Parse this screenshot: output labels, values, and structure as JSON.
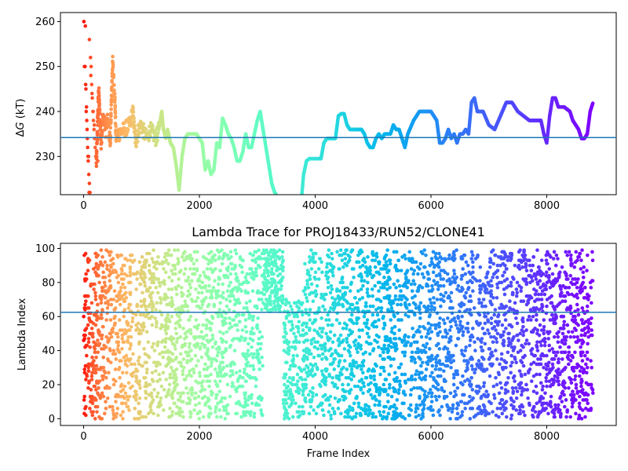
{
  "chart_data": [
    {
      "type": "scatter",
      "title": "",
      "xlabel": "",
      "ylabel": "ΔG (kT)",
      "ylabel_parts": {
        "delta": "Δ",
        "var": "G",
        "unit": " (kT)"
      },
      "xlim": [
        -400,
        9200
      ],
      "ylim": [
        221.5,
        262
      ],
      "xticks": [
        0,
        2000,
        4000,
        6000,
        8000
      ],
      "yticks": [
        230,
        240,
        250,
        260
      ],
      "hline": 234.2,
      "hline_color": "#1f77b4",
      "colormap": "rainbow_reversed",
      "x_max": 8800,
      "series": [
        {
          "kind": "scatter",
          "points": [
            [
              5,
              260
            ],
            [
              15,
              250
            ],
            [
              25,
              250
            ],
            [
              35,
              246
            ],
            [
              45,
              240
            ],
            [
              55,
              238
            ],
            [
              65,
              234
            ],
            [
              75,
              230
            ],
            [
              85,
              230
            ],
            [
              95,
              222
            ],
            [
              30,
              259
            ],
            [
              40,
              245
            ],
            [
              50,
              241
            ],
            [
              60,
              236
            ],
            [
              70,
              232
            ],
            [
              80,
              229
            ],
            [
              90,
              226
            ],
            [
              100,
              224
            ],
            [
              110,
              222
            ],
            [
              120,
              252
            ],
            [
              130,
              250
            ],
            [
              140,
              246
            ],
            [
              150,
              243
            ],
            [
              160,
              240
            ],
            [
              170,
              238
            ],
            [
              180,
              236
            ],
            [
              190,
              234
            ],
            [
              200,
              232
            ],
            [
              210,
              230
            ],
            [
              100,
              256
            ],
            [
              125,
              248
            ],
            [
              145,
              244
            ],
            [
              165,
              240
            ],
            [
              185,
              237
            ],
            [
              205,
              234
            ],
            [
              225,
              231
            ],
            [
              245,
              229
            ]
          ]
        },
        {
          "kind": "trace",
          "points": [
            [
              220,
              228
            ],
            [
              260,
              245
            ],
            [
              300,
              233
            ],
            [
              340,
              239
            ],
            [
              380,
              236
            ],
            [
              420,
              238
            ],
            [
              460,
              233
            ],
            [
              500,
              251
            ],
            [
              540,
              243
            ],
            [
              560,
              234
            ],
            [
              600,
              235
            ],
            [
              700,
              236
            ],
            [
              800,
              237
            ],
            [
              850,
              240
            ],
            [
              900,
              233
            ],
            [
              950,
              236
            ],
            [
              1000,
              237
            ],
            [
              1050,
              235
            ],
            [
              1100,
              234
            ],
            [
              1150,
              236
            ],
            [
              1200,
              235
            ],
            [
              1250,
              234
            ],
            [
              1300,
              236
            ],
            [
              1350,
              240
            ],
            [
              1380,
              236
            ],
            [
              1420,
              234
            ],
            [
              1450,
              236
            ],
            [
              1500,
              233
            ],
            [
              1550,
              232
            ],
            [
              1600,
              228
            ],
            [
              1650,
              222.5
            ],
            [
              1700,
              230
            ],
            [
              1750,
              234
            ],
            [
              1800,
              235
            ],
            [
              1850,
              235
            ],
            [
              1950,
              235
            ],
            [
              2050,
              233
            ],
            [
              2100,
              227
            ],
            [
              2150,
              229
            ],
            [
              2200,
              226
            ],
            [
              2250,
              227
            ],
            [
              2300,
              233
            ],
            [
              2350,
              232
            ],
            [
              2400,
              238.5
            ],
            [
              2450,
              237
            ],
            [
              2500,
              235
            ],
            [
              2550,
              234
            ],
            [
              2600,
              232
            ],
            [
              2650,
              229
            ],
            [
              2700,
              229
            ],
            [
              2750,
              231
            ],
            [
              2800,
              235
            ],
            [
              2850,
              232
            ],
            [
              2900,
              232
            ],
            [
              2950,
              235
            ],
            [
              3000,
              238
            ],
            [
              3050,
              240
            ],
            [
              3100,
              236
            ],
            [
              3150,
              232
            ],
            [
              3200,
              228
            ],
            [
              3250,
              224
            ],
            [
              3300,
              222
            ],
            [
              3330,
              221.5
            ]
          ]
        },
        {
          "kind": "trace",
          "points": [
            [
              3770,
              221.5
            ],
            [
              3800,
              226
            ],
            [
              3850,
              229
            ],
            [
              3900,
              229.5
            ],
            [
              4000,
              229.5
            ],
            [
              4100,
              229.5
            ],
            [
              4150,
              233
            ],
            [
              4200,
              234
            ],
            [
              4300,
              234
            ],
            [
              4350,
              234
            ],
            [
              4400,
              239
            ],
            [
              4450,
              239.5
            ],
            [
              4500,
              239.5
            ],
            [
              4550,
              237
            ],
            [
              4600,
              236
            ],
            [
              4700,
              236
            ],
            [
              4800,
              236
            ],
            [
              4850,
              235
            ],
            [
              4900,
              233
            ],
            [
              4950,
              232
            ],
            [
              5000,
              232
            ],
            [
              5050,
              234
            ],
            [
              5100,
              235
            ],
            [
              5150,
              234
            ],
            [
              5200,
              235
            ],
            [
              5300,
              235
            ],
            [
              5350,
              237
            ],
            [
              5400,
              236
            ],
            [
              5450,
              236
            ],
            [
              5500,
              234
            ],
            [
              5550,
              232
            ],
            [
              5600,
              235
            ],
            [
              5700,
              238
            ],
            [
              5800,
              240
            ],
            [
              5900,
              240
            ],
            [
              6000,
              240
            ],
            [
              6100,
              238
            ],
            [
              6150,
              233
            ],
            [
              6200,
              233
            ],
            [
              6250,
              234
            ],
            [
              6300,
              236
            ],
            [
              6350,
              234
            ],
            [
              6400,
              235
            ],
            [
              6450,
              233
            ],
            [
              6500,
              235
            ],
            [
              6550,
              235
            ],
            [
              6600,
              236
            ],
            [
              6650,
              235
            ],
            [
              6700,
              242
            ],
            [
              6750,
              243
            ],
            [
              6800,
              240
            ],
            [
              6900,
              240
            ],
            [
              7000,
              237
            ],
            [
              7100,
              236
            ],
            [
              7200,
              239
            ],
            [
              7300,
              242
            ],
            [
              7400,
              242
            ],
            [
              7450,
              241
            ],
            [
              7500,
              240
            ],
            [
              7600,
              239
            ],
            [
              7700,
              238
            ],
            [
              7800,
              238
            ],
            [
              7900,
              238
            ],
            [
              7950,
              235
            ],
            [
              8000,
              233
            ],
            [
              8050,
              239
            ],
            [
              8100,
              243
            ],
            [
              8150,
              243
            ],
            [
              8200,
              241
            ],
            [
              8300,
              241
            ],
            [
              8400,
              240
            ],
            [
              8450,
              238
            ],
            [
              8500,
              237
            ],
            [
              8550,
              236
            ],
            [
              8600,
              234
            ],
            [
              8650,
              234
            ],
            [
              8700,
              235
            ],
            [
              8750,
              240
            ],
            [
              8800,
              242
            ]
          ]
        }
      ]
    },
    {
      "type": "scatter",
      "title": "Lambda Trace for PROJ18433/RUN52/CLONE41",
      "xlabel": "Frame Index",
      "ylabel": "Lambda Index",
      "xlim": [
        -400,
        9200
      ],
      "ylim": [
        -4,
        103
      ],
      "xticks": [
        0,
        2000,
        4000,
        6000,
        8000
      ],
      "yticks": [
        0,
        20,
        40,
        60,
        80,
        100
      ],
      "hline": 62.5,
      "hline_color": "#1f77b4",
      "colormap": "rainbow_reversed",
      "x_max": 8800,
      "n_points_approx": 4400,
      "density_regions": [
        {
          "x": [
            0,
            200
          ],
          "y": [
            0,
            99
          ]
        },
        {
          "x": [
            200,
            3100
          ],
          "y": [
            0,
            99
          ]
        },
        {
          "x": [
            3100,
            3450
          ],
          "y": [
            62,
            100
          ]
        },
        {
          "x": [
            3450,
            3800
          ],
          "y": [
            0,
            70
          ]
        },
        {
          "x": [
            3800,
            8800
          ],
          "y": [
            0,
            99
          ]
        }
      ]
    }
  ]
}
